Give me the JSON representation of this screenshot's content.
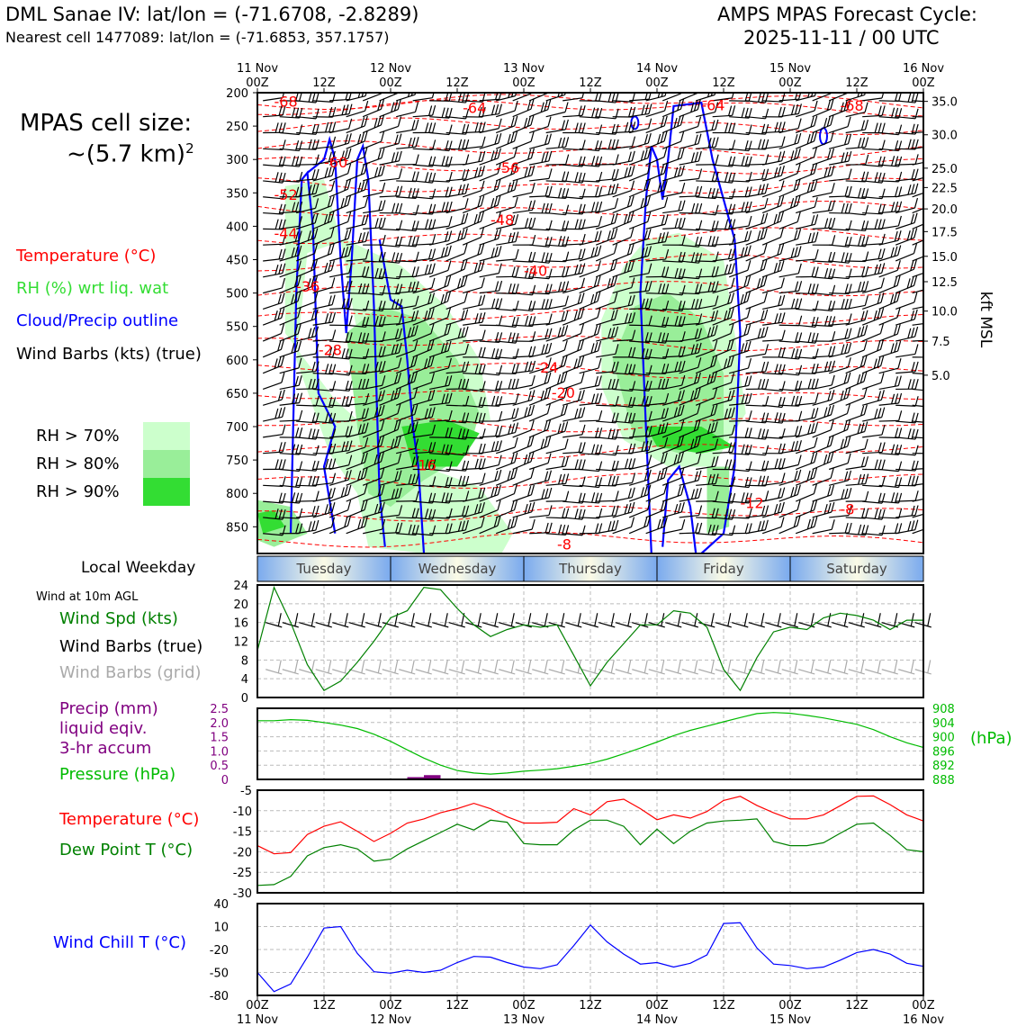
{
  "header": {
    "station_title": "DML Sanae IV: lat/lon = (-71.6708, -2.8289)",
    "nearest_cell": "Nearest cell 1477089: lat/lon = (-71.6853, 357.1757)",
    "cycle_title": "AMPS MPAS Forecast Cycle:",
    "cycle_date": "2025-11-11 / 00 UTC"
  },
  "left_labels": {
    "cell_size_line1": "MPAS cell size:",
    "cell_size_line2": "~(5.7 km)",
    "cell_size_exp": "2",
    "legend_temperature": "Temperature (°C)",
    "legend_rh": "RH (%) wrt liq. wat",
    "legend_cloud": "Cloud/Precip outline",
    "legend_barbs": "Wind Barbs (kts) (true)",
    "rh70": "RH > 70%",
    "rh80": "RH > 80%",
    "rh90": "RH > 90%",
    "local_weekday": "Local Weekday",
    "wind10m": "Wind at 10m AGL",
    "wind_spd": "Wind Spd (kts)",
    "wind_barbs_true": "Wind Barbs (true)",
    "wind_barbs_grid": "Wind Barbs (grid)",
    "precip1": "Precip (mm)",
    "precip2": "liquid eqiv.",
    "precip3": "3-hr accum",
    "pressure": "Pressure (hPa)",
    "temp": "Temperature (°C)",
    "dewpoint": "Dew Point T (°C)",
    "windchill": "Wind Chill T (°C)"
  },
  "colors": {
    "temperature": "#ff0000",
    "rh70": "#ccffcc",
    "rh80": "#99ee99",
    "rh90": "#33dd33",
    "cloud": "#0000ff",
    "wind_speed": "#008000",
    "pressure": "#00bb00",
    "precip": "#800080",
    "dewpoint": "#008000",
    "windchill": "#0000ff",
    "grid_barbs": "#aaaaaa"
  },
  "chart_data": [
    {
      "type": "heatmap",
      "name": "time-height cross section",
      "x_top_labels": [
        [
          "11 Nov",
          "00Z"
        ],
        [
          "",
          "12Z"
        ],
        [
          "12 Nov",
          "00Z"
        ],
        [
          "",
          "12Z"
        ],
        [
          "13 Nov",
          "00Z"
        ],
        [
          "",
          "12Z"
        ],
        [
          "14 Nov",
          "00Z"
        ],
        [
          "",
          "12Z"
        ],
        [
          "15 Nov",
          "00Z"
        ],
        [
          "",
          "12Z"
        ],
        [
          "16 Nov",
          "00Z"
        ]
      ],
      "x_hours": [
        0,
        12,
        24,
        36,
        48,
        60,
        72,
        84,
        96,
        108,
        120
      ],
      "y_axis_pressure_hPa": [
        200,
        250,
        300,
        350,
        400,
        450,
        500,
        550,
        600,
        650,
        700,
        750,
        800,
        850
      ],
      "ylim_hPa": [
        200,
        890
      ],
      "right_axis_label": "kft MSL",
      "right_axis_ticks": [
        {
          "label": "35.0",
          "p": 213
        },
        {
          "label": "30.0",
          "p": 263
        },
        {
          "label": "25.0",
          "p": 313
        },
        {
          "label": "22.5",
          "p": 342
        },
        {
          "label": "20.0",
          "p": 374
        },
        {
          "label": "17.5",
          "p": 408
        },
        {
          "label": "15.0",
          "p": 445
        },
        {
          "label": "12.5",
          "p": 483
        },
        {
          "label": "10.0",
          "p": 527
        },
        {
          "label": "7.5",
          "p": 572
        },
        {
          "label": "5.0",
          "p": 623
        }
      ],
      "temperature_labels": [
        {
          "text": "-68",
          "h": 3,
          "p": 213
        },
        {
          "text": "-64",
          "h": 37,
          "p": 222
        },
        {
          "text": "-64",
          "h": 80,
          "p": 218
        },
        {
          "text": "-68",
          "h": 105,
          "p": 219
        },
        {
          "text": "-60",
          "h": 12,
          "p": 304
        },
        {
          "text": "-56",
          "h": 43,
          "p": 312
        },
        {
          "text": "-52",
          "h": 3,
          "p": 352
        },
        {
          "text": "-48",
          "h": 42,
          "p": 390
        },
        {
          "text": "-44",
          "h": 3,
          "p": 410
        },
        {
          "text": "-40",
          "h": 48,
          "p": 466
        },
        {
          "text": "-36",
          "h": 7,
          "p": 490
        },
        {
          "text": "-28",
          "h": 11,
          "p": 585
        },
        {
          "text": "-24",
          "h": 50,
          "p": 611
        },
        {
          "text": "-20",
          "h": 53,
          "p": 649
        },
        {
          "text": "-16",
          "h": 28,
          "p": 757
        },
        {
          "text": "-12",
          "h": 87,
          "p": 814
        },
        {
          "text": "-8",
          "h": 105,
          "p": 823
        },
        {
          "text": "-8",
          "h": 54,
          "p": 876
        }
      ],
      "weekday_bands": [
        "Tuesday",
        "Wednesday",
        "Thursday",
        "Friday",
        "Saturday"
      ]
    },
    {
      "type": "line",
      "name": "Wind Spd (kts)",
      "x_hours": [
        0,
        3,
        6,
        9,
        12,
        15,
        18,
        21,
        24,
        27,
        30,
        33,
        36,
        39,
        42,
        45,
        48,
        51,
        54,
        57,
        60,
        63,
        66,
        69,
        72,
        75,
        78,
        81,
        84,
        87,
        90,
        93,
        96,
        99,
        102,
        105,
        108,
        111,
        114,
        117,
        120
      ],
      "values": [
        10,
        23.5,
        16,
        7,
        1.5,
        3.5,
        7.5,
        12,
        17,
        18.5,
        23.5,
        23,
        19,
        15.5,
        13,
        14.5,
        15.5,
        15,
        15.5,
        9,
        2.5,
        7.5,
        11.5,
        15.5,
        15.5,
        18.5,
        18,
        15,
        6,
        1.5,
        8.5,
        14,
        15,
        14.5,
        17,
        18,
        17.5,
        16.5,
        14.5,
        16.5,
        16.5
      ],
      "ylim": [
        0,
        24
      ],
      "yticks": [
        0,
        4,
        8,
        12,
        16,
        20,
        24
      ]
    },
    {
      "type": "line",
      "name": "Pressure (hPa)",
      "x_hours": [
        0,
        3,
        6,
        9,
        12,
        15,
        18,
        21,
        24,
        27,
        30,
        33,
        36,
        39,
        42,
        45,
        48,
        51,
        54,
        57,
        60,
        63,
        66,
        69,
        72,
        75,
        78,
        81,
        84,
        87,
        90,
        93,
        96,
        99,
        102,
        105,
        108,
        111,
        114,
        117,
        120
      ],
      "values": [
        904.5,
        904.5,
        904.8,
        904.6,
        904,
        903.3,
        902.3,
        900.7,
        898.7,
        896.3,
        894,
        892,
        890.5,
        889.8,
        889.5,
        889.8,
        890.3,
        890.6,
        891,
        891.7,
        892.5,
        893.7,
        895.2,
        896.8,
        898.5,
        900.3,
        901.8,
        903,
        904.2,
        905.4,
        906.5,
        906.8,
        906.6,
        906,
        905.3,
        904.4,
        903.5,
        902,
        900,
        898.3,
        897
      ],
      "ylim_hPa": [
        888,
        908
      ],
      "right_yticks": [
        888,
        892,
        896,
        900,
        904,
        908
      ],
      "precip_left_yticks": [
        "0",
        "0.5",
        "1.0",
        "1.5",
        "2.0",
        "2.5"
      ],
      "precip_ylim_mm": [
        0,
        2.5
      ],
      "precip_bars": [
        {
          "x_hours": [
            27,
            30
          ],
          "value": 0.08
        },
        {
          "x_hours": [
            30,
            33
          ],
          "value": 0.15
        }
      ]
    },
    {
      "type": "line",
      "name": "Temperature / Dew Point",
      "x_hours": [
        0,
        3,
        6,
        9,
        12,
        15,
        18,
        21,
        24,
        27,
        30,
        33,
        36,
        39,
        42,
        45,
        48,
        51,
        54,
        57,
        60,
        63,
        66,
        69,
        72,
        75,
        78,
        81,
        84,
        87,
        90,
        93,
        96,
        99,
        102,
        105,
        108,
        111,
        114,
        117,
        120
      ],
      "series": [
        {
          "name": "Temperature (°C)",
          "values": [
            -18.5,
            -20.5,
            -20.2,
            -15.8,
            -13.8,
            -12.7,
            -15,
            -17.5,
            -15.5,
            -13,
            -12,
            -10.5,
            -9.5,
            -8.2,
            -9.5,
            -11.5,
            -13,
            -13,
            -12.8,
            -9.5,
            -11,
            -7.8,
            -7.2,
            -9.5,
            -12.2,
            -11,
            -11.8,
            -10.2,
            -7.5,
            -6.5,
            -8.7,
            -10.5,
            -12,
            -12,
            -11,
            -8.8,
            -6.5,
            -6.4,
            -8.5,
            -11,
            -12.5
          ]
        },
        {
          "name": "Dew Point T (°C)",
          "values": [
            -28.2,
            -28,
            -26,
            -21,
            -19,
            -18.3,
            -19.3,
            -22.3,
            -21.8,
            -19.3,
            -17.3,
            -15.3,
            -13.3,
            -14.7,
            -12.3,
            -12.8,
            -18,
            -18.3,
            -18.3,
            -14.7,
            -12.3,
            -12.3,
            -13.8,
            -18.3,
            -14.5,
            -18,
            -15,
            -13,
            -12.5,
            -12.3,
            -12,
            -17.5,
            -18.5,
            -18.5,
            -17.8,
            -15.5,
            -13.3,
            -13,
            -16,
            -19.5,
            -20
          ]
        }
      ],
      "ylim": [
        -30,
        -5
      ],
      "yticks": [
        -30,
        -25,
        -20,
        -15,
        -10,
        -5
      ]
    },
    {
      "type": "line",
      "name": "Wind Chill T (°C)",
      "x_hours": [
        0,
        3,
        6,
        9,
        12,
        15,
        18,
        21,
        24,
        27,
        30,
        33,
        36,
        39,
        42,
        45,
        48,
        51,
        54,
        57,
        60,
        63,
        66,
        69,
        72,
        75,
        78,
        81,
        84,
        87,
        90,
        93,
        96,
        99,
        102,
        105,
        108,
        111,
        114,
        117,
        120
      ],
      "values": [
        -50,
        -75,
        -65,
        -30,
        8,
        10,
        -25,
        -49,
        -51,
        -47,
        -50,
        -47,
        -37,
        -29,
        -30,
        -37,
        -43,
        -45,
        -40,
        -15,
        12,
        -10,
        -26,
        -39,
        -37,
        -43,
        -38,
        -27,
        14,
        15,
        -18,
        -39,
        -41,
        -45,
        -43,
        -34,
        -24,
        -20,
        -26,
        -38,
        -42
      ],
      "ylim": [
        -80,
        40
      ],
      "ytick_labels": [
        "-80",
        "-50",
        "-20",
        "10",
        "40"
      ],
      "bottom_x_labels": [
        [
          "00Z",
          "11 Nov"
        ],
        [
          "12Z",
          ""
        ],
        [
          "00Z",
          "12 Nov"
        ],
        [
          "12Z",
          ""
        ],
        [
          "00Z",
          "13 Nov"
        ],
        [
          "12Z",
          ""
        ],
        [
          "00Z",
          "14 Nov"
        ],
        [
          "12Z",
          ""
        ],
        [
          "00Z",
          "15 Nov"
        ],
        [
          "12Z",
          ""
        ],
        [
          "00Z",
          "16 Nov"
        ]
      ]
    }
  ]
}
